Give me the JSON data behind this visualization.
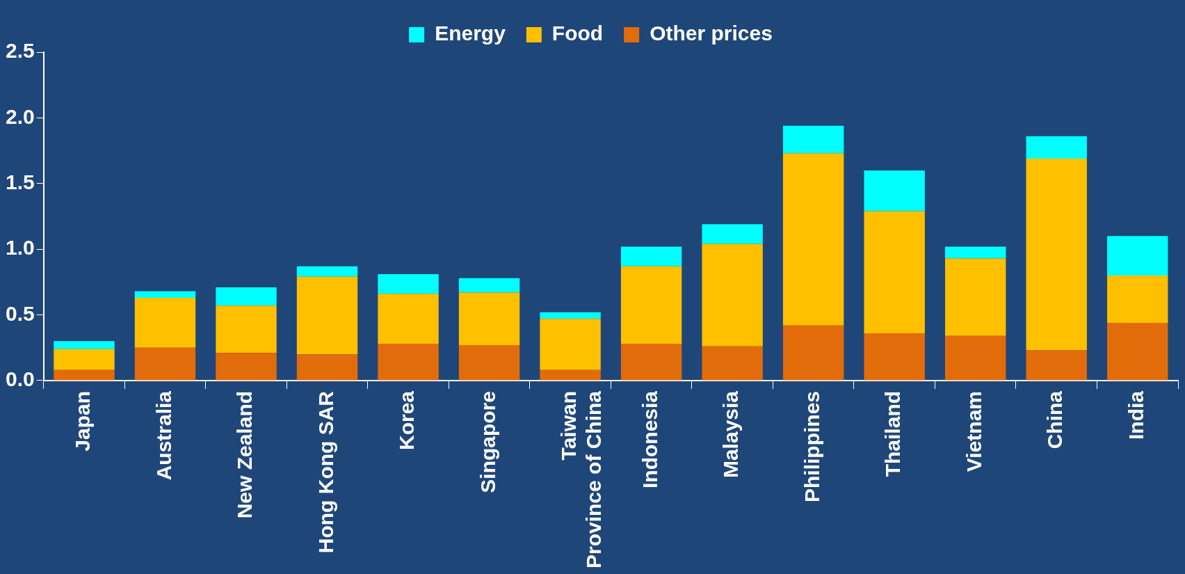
{
  "chart_data": {
    "type": "bar",
    "stacked": true,
    "grid": false,
    "legend": "top",
    "categories": [
      "Japan",
      "Australia",
      "New Zealand",
      "Hong Kong SAR",
      "Korea",
      "Singapore",
      "Taiwan\nProvince of China",
      "Indonesia",
      "Malaysia",
      "Philippines",
      "Thailand",
      "Vietnam",
      "China",
      "India"
    ],
    "ylim": [
      0,
      2.5
    ],
    "yticks": [
      {
        "value": 0,
        "label": "0.0"
      },
      {
        "value": 0.5,
        "label": "0.5"
      },
      {
        "value": 1,
        "label": "1.0"
      },
      {
        "value": 1.5,
        "label": "1.5"
      },
      {
        "value": 2,
        "label": "2.0"
      },
      {
        "value": 2.5,
        "label": "2.5"
      }
    ],
    "series": [
      {
        "name": "Other prices",
        "color": "#e36c0a",
        "values": [
          0.08,
          0.25,
          0.21,
          0.2,
          0.28,
          0.27,
          0.08,
          0.28,
          0.26,
          0.42,
          0.36,
          0.34,
          0.23,
          0.44
        ]
      },
      {
        "name": "Food",
        "color": "#ffc000",
        "values": [
          0.16,
          0.38,
          0.36,
          0.59,
          0.38,
          0.4,
          0.39,
          0.59,
          0.78,
          1.31,
          0.93,
          0.59,
          1.46,
          0.36
        ]
      },
      {
        "name": "Energy",
        "color": "#00ffff",
        "values": [
          0.06,
          0.05,
          0.14,
          0.08,
          0.15,
          0.11,
          0.05,
          0.15,
          0.15,
          0.21,
          0.31,
          0.09,
          0.17,
          0.3
        ]
      }
    ]
  }
}
